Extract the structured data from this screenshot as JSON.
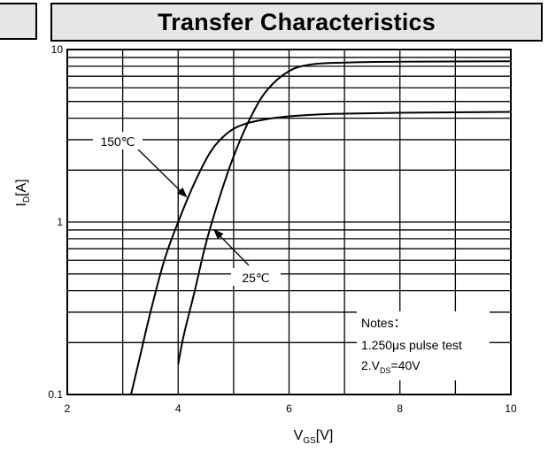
{
  "chart_data": {
    "type": "line",
    "title": "Transfer Characteristics",
    "xlabel": {
      "main": "V",
      "sub": "GS",
      "unit": "[V]"
    },
    "ylabel": {
      "main": "I",
      "sub": "D",
      "unit": "[A]"
    },
    "x_scale": "linear",
    "y_scale": "log",
    "xlim": [
      2,
      10
    ],
    "ylim": [
      0.1,
      10
    ],
    "x_ticks": [
      {
        "value": 2,
        "label": "2"
      },
      {
        "value": 4,
        "label": "4"
      },
      {
        "value": 6,
        "label": "6"
      },
      {
        "value": 8,
        "label": "8"
      },
      {
        "value": 10,
        "label": "10"
      }
    ],
    "y_ticks": [
      {
        "value": 0.1,
        "label": "0.1"
      },
      {
        "value": 1,
        "label": "1"
      },
      {
        "value": 10,
        "label": "10"
      }
    ],
    "grid": true,
    "series": [
      {
        "name": "150℃",
        "points": [
          [
            3.15,
            0.1
          ],
          [
            3.3,
            0.16
          ],
          [
            3.5,
            0.3
          ],
          [
            3.75,
            0.6
          ],
          [
            4.0,
            1.0
          ],
          [
            4.3,
            1.7
          ],
          [
            4.6,
            2.6
          ],
          [
            4.9,
            3.3
          ],
          [
            5.2,
            3.7
          ],
          [
            5.6,
            3.95
          ],
          [
            6.0,
            4.1
          ],
          [
            6.5,
            4.2
          ],
          [
            7.0,
            4.25
          ],
          [
            8.0,
            4.3
          ],
          [
            10.0,
            4.35
          ]
        ]
      },
      {
        "name": "25℃",
        "points": [
          [
            4.0,
            0.15
          ],
          [
            4.1,
            0.22
          ],
          [
            4.3,
            0.4
          ],
          [
            4.5,
            0.75
          ],
          [
            4.75,
            1.4
          ],
          [
            5.0,
            2.4
          ],
          [
            5.3,
            4.0
          ],
          [
            5.6,
            5.8
          ],
          [
            6.0,
            7.5
          ],
          [
            6.4,
            8.2
          ],
          [
            7.0,
            8.4
          ],
          [
            8.0,
            8.5
          ],
          [
            10.0,
            8.55
          ]
        ]
      }
    ],
    "annotations": [
      {
        "text": "150℃",
        "points_to": [
          4.15,
          1.4
        ]
      },
      {
        "text": "25℃",
        "points_to": [
          4.65,
          0.9
        ]
      }
    ],
    "notes": {
      "heading": "Notes：",
      "line1": "1.250μs pulse test",
      "line2": {
        "main": "2.V",
        "sub": "DS",
        "rest": "=40V"
      }
    }
  }
}
